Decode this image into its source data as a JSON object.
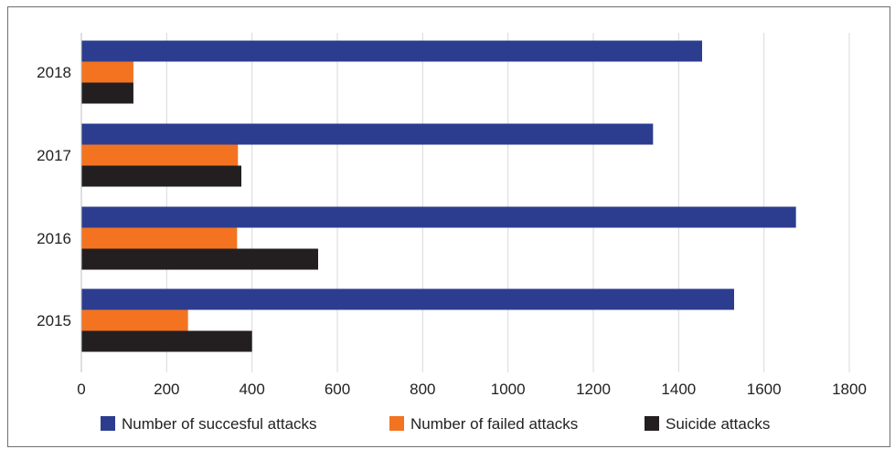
{
  "chart_data": {
    "type": "bar",
    "orientation": "horizontal",
    "categories": [
      "2018",
      "2017",
      "2016",
      "2015"
    ],
    "series": [
      {
        "name": "Number of succesful attacks",
        "color": "#2c3d8f",
        "values": [
          1455,
          1340,
          1675,
          1530
        ]
      },
      {
        "name": "Number of failed attacks",
        "color": "#f37321",
        "values": [
          122,
          367,
          365,
          250
        ]
      },
      {
        "name": "Suicide attacks",
        "color": "#231f20",
        "values": [
          122,
          375,
          555,
          400
        ]
      }
    ],
    "xticks": [
      "0",
      "200",
      "400",
      "600",
      "800",
      "1000",
      "1200",
      "1400",
      "1600",
      "1800"
    ],
    "xlim": [
      0,
      1800
    ],
    "grid": "vertical",
    "legend_position": "bottom",
    "title": "",
    "xlabel": "",
    "ylabel": ""
  }
}
